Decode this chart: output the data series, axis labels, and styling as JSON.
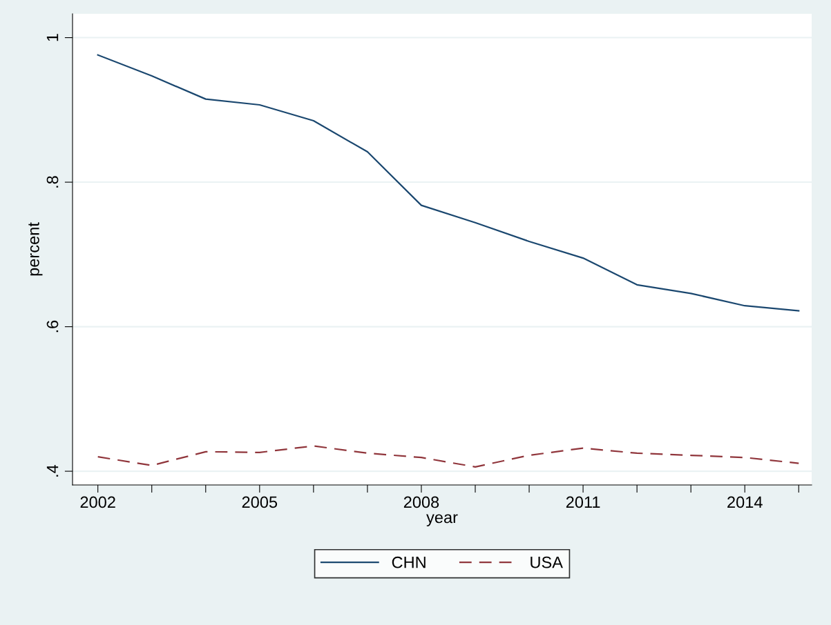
{
  "chart_data": {
    "type": "line",
    "xlabel": "year",
    "ylabel": "percent",
    "x": [
      2002,
      2003,
      2004,
      2005,
      2006,
      2007,
      2008,
      2009,
      2010,
      2011,
      2012,
      2013,
      2014,
      2015
    ],
    "series": [
      {
        "name": "CHN",
        "color": "#1a476f",
        "line_style": "solid",
        "values": [
          0.976,
          0.947,
          0.915,
          0.907,
          0.885,
          0.842,
          0.768,
          0.744,
          0.718,
          0.695,
          0.658,
          0.646,
          0.629,
          0.622
        ]
      },
      {
        "name": "USA",
        "color": "#90353b",
        "line_style": "dashed",
        "values": [
          0.42,
          0.408,
          0.427,
          0.426,
          0.435,
          0.425,
          0.419,
          0.406,
          0.422,
          0.432,
          0.425,
          0.422,
          0.419,
          0.411
        ]
      }
    ],
    "xlim": [
      2001.53,
      2015.24
    ],
    "ylim": [
      0.381,
      1.033
    ],
    "xticks": [
      2002,
      {
        "value": 2003,
        "label": null
      },
      {
        "value": 2004,
        "label": null
      },
      2005,
      {
        "value": 2006,
        "label": null
      },
      {
        "value": 2007,
        "label": null
      },
      2008,
      {
        "value": 2009,
        "label": null
      },
      {
        "value": 2010,
        "label": null
      },
      2011,
      {
        "value": 2012,
        "label": null
      },
      {
        "value": 2013,
        "label": null
      },
      2014,
      {
        "value": 2015,
        "label": null
      }
    ],
    "yticks": [
      {
        "value": 0.4,
        "label": ".4"
      },
      {
        "value": 0.6,
        "label": ".6"
      },
      {
        "value": 0.8,
        "label": ".8"
      },
      {
        "value": 1,
        "label": "1"
      }
    ],
    "grid": "y",
    "legend": "bottom",
    "marker": "none"
  }
}
